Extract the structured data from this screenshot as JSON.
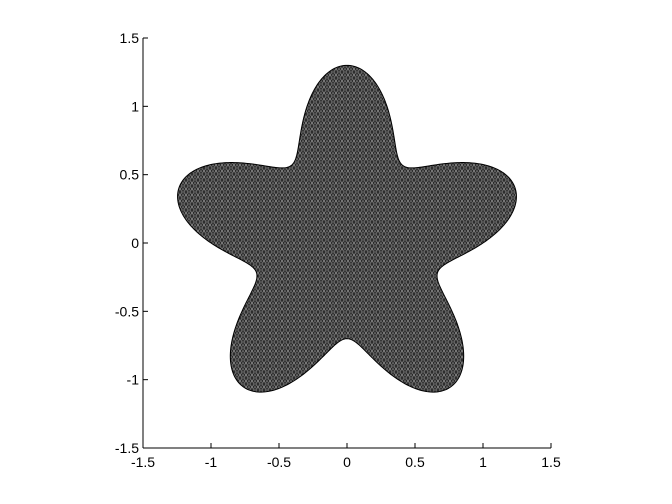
{
  "chart_data": {
    "type": "area",
    "title": "",
    "xlabel": "",
    "ylabel": "",
    "xlim": [
      -1.5,
      1.5
    ],
    "ylim": [
      -1.5,
      1.5
    ],
    "xticks": [
      -1.5,
      -1,
      -0.5,
      0,
      0.5,
      1,
      1.5
    ],
    "yticks": [
      -1.5,
      -1,
      -0.5,
      0,
      0.5,
      1,
      1.5
    ],
    "xtick_labels": [
      "-1.5",
      "-1",
      "-0.5",
      "0",
      "0.5",
      "1",
      "1.5"
    ],
    "ytick_labels": [
      "-1.5",
      "-1",
      "-0.5",
      "0",
      "0.5",
      "1",
      "1.5"
    ],
    "grid": false,
    "legend": false,
    "shape": {
      "description": "five-lobed star shaped region filled with a dense triangular mesh",
      "curve": "r = 1 + 0.3*cos(5*theta) , rotated so a lobe points up",
      "base_radius": 1.0,
      "lobe_amplitude": 0.3,
      "lobes": 5,
      "fill": "#555555",
      "mesh_color": "#000000"
    }
  }
}
